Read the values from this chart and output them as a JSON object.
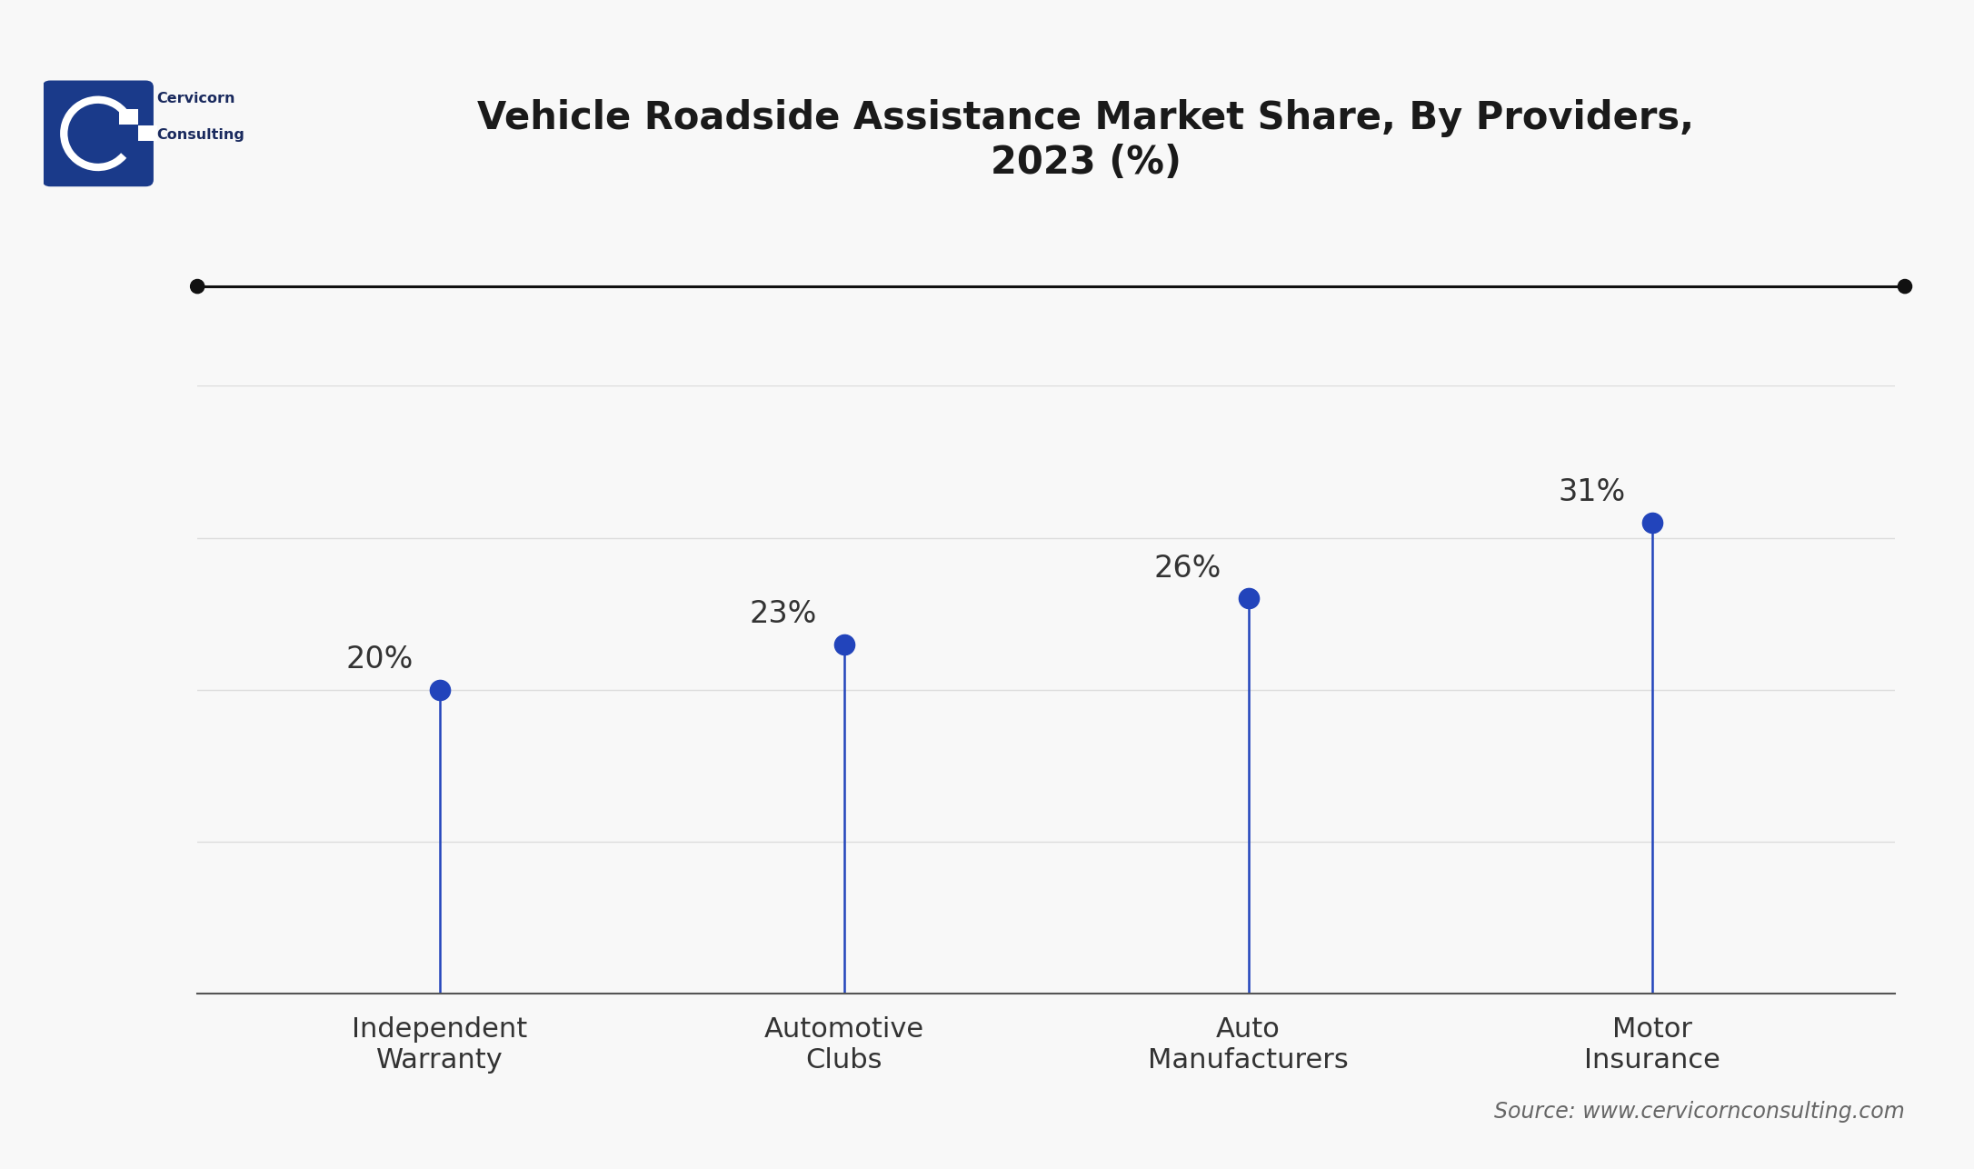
{
  "title": "Vehicle Roadside Assistance Market Share, By Providers,\n2023 (%)",
  "categories": [
    "Independent\nWarranty",
    "Automotive\nClubs",
    "Auto\nManufacturers",
    "Motor\nInsurance"
  ],
  "values": [
    20,
    23,
    26,
    31
  ],
  "labels": [
    "20%",
    "23%",
    "26%",
    "31%"
  ],
  "line_color": "#2244bb",
  "dot_color": "#2244bb",
  "marker_size": 16,
  "stem_linewidth": 1.8,
  "title_fontsize": 30,
  "label_fontsize": 24,
  "tick_fontsize": 22,
  "source_text": "Source: www.cervicornconsulting.com",
  "source_fontsize": 17,
  "background_color": "#f8f8f8",
  "ylim": [
    0,
    40
  ],
  "xlim": [
    -0.6,
    3.6
  ],
  "top_line_color": "#111111",
  "top_dot_color": "#111111",
  "grid_color": "#dddddd",
  "axis_color": "#555555",
  "logo_bg_color": "#1a3a8a",
  "brand_color": "#1a2a5e"
}
